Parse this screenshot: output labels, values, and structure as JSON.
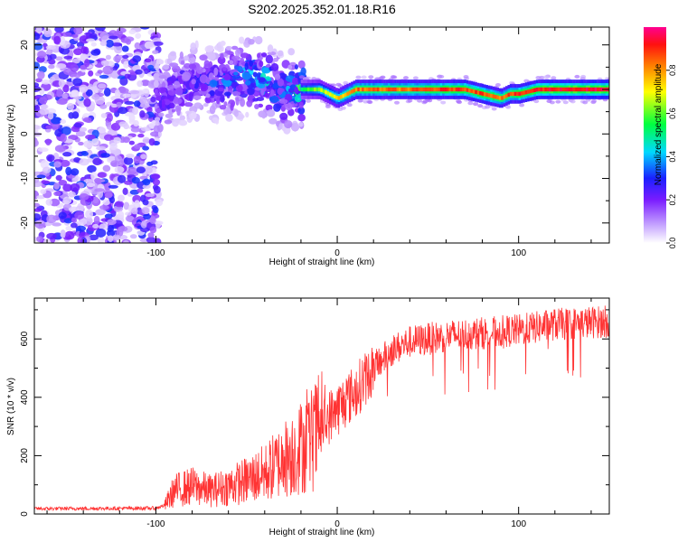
{
  "chart_data": [
    {
      "type": "heatmap",
      "title": "S202.2025.352.01.18.R16",
      "xlabel": "Height of straight line (km)",
      "ylabel": "Frequency (Hz)",
      "xlim": [
        -167,
        150
      ],
      "ylim": [
        -24.5,
        24
      ],
      "x_ticks": [
        -100,
        0,
        100
      ],
      "y_ticks": [
        -20,
        -10,
        0,
        10,
        20
      ],
      "ridge": {
        "x": [
          -100,
          -90,
          -80,
          -70,
          -60,
          -50,
          -40,
          -30,
          -25,
          -20,
          -15,
          -10,
          -5,
          0,
          5,
          10,
          20,
          30,
          40,
          50,
          60,
          70,
          80,
          85,
          90,
          95,
          100,
          110,
          120,
          130,
          140,
          150
        ],
        "freq": [
          7,
          10,
          12,
          11,
          12,
          13,
          12,
          9,
          10,
          10,
          10,
          10,
          9,
          8,
          9,
          10,
          10,
          10,
          10,
          10,
          10,
          10,
          9,
          8.5,
          8,
          9,
          9,
          10,
          10,
          10,
          10,
          10
        ],
        "amplitude": [
          0.25,
          0.3,
          0.3,
          0.3,
          0.35,
          0.4,
          0.45,
          0.4,
          0.45,
          0.55,
          0.6,
          0.65,
          0.7,
          0.75,
          0.8,
          0.85,
          0.85,
          0.85,
          0.85,
          0.88,
          0.9,
          0.9,
          0.9,
          0.88,
          0.85,
          0.88,
          0.9,
          0.92,
          0.95,
          0.95,
          0.95,
          0.95
        ]
      }
    },
    {
      "type": "line",
      "xlabel": "Height of straight line (km)",
      "ylabel": "SNR (10 * v/v)",
      "xlim": [
        -167,
        150
      ],
      "ylim": [
        0,
        740
      ],
      "x_ticks": [
        -100,
        0,
        100
      ],
      "y_ticks": [
        0,
        200,
        400,
        600
      ],
      "series": [
        {
          "name": "SNR",
          "color": "#ff3333",
          "envelope_x": [
            -167,
            -100,
            -95,
            -90,
            -80,
            -70,
            -60,
            -50,
            -40,
            -30,
            -20,
            -15,
            -10,
            -5,
            0,
            10,
            20,
            30,
            40,
            50,
            60,
            80,
            100,
            120,
            150
          ],
          "envelope_mean": [
            18,
            20,
            30,
            80,
            95,
            80,
            95,
            115,
            140,
            185,
            230,
            250,
            280,
            330,
            360,
            420,
            500,
            560,
            590,
            600,
            610,
            620,
            630,
            650,
            660
          ]
        }
      ]
    },
    {
      "type": "colorbar",
      "label": "Normalized spectral amplitude",
      "ticks": [
        "0.0",
        "0.2",
        "0.4",
        "0.6",
        "0.8"
      ],
      "range": [
        0,
        1
      ]
    }
  ]
}
